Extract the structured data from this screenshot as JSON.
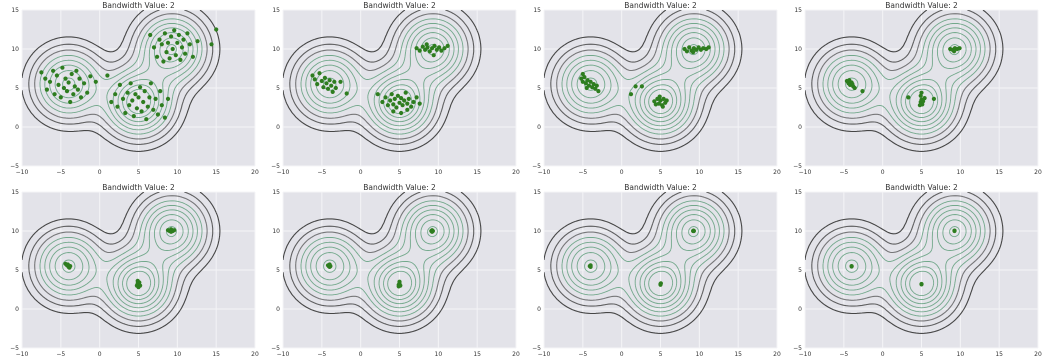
{
  "chart_data": {
    "type": "scatter",
    "colors": {
      "plot_bg": "#e3e3e9",
      "grid": "#f4f4f7",
      "points": "#2e7d1f",
      "contour_outer": "#3c3c3c",
      "contour_inner": "#5e9e7a"
    },
    "centers": [
      [
        -4,
        5.5
      ],
      [
        5,
        3.2
      ],
      [
        9.3,
        10
      ]
    ],
    "panels": [
      {
        "title": "Bandwidth Value: 2",
        "xlim": [
          -10,
          20
        ],
        "ylim": [
          -5,
          15
        ],
        "xticks": [
          -10,
          -5,
          0,
          5,
          10,
          15,
          20
        ],
        "yticks": [
          -5,
          0,
          5,
          10,
          15
        ],
        "points": [
          [
            -7.5,
            7
          ],
          [
            -7,
            6.2
          ],
          [
            -6.8,
            4.8
          ],
          [
            -6.4,
            5.8
          ],
          [
            -6,
            7.2
          ],
          [
            -5.8,
            4.2
          ],
          [
            -5.5,
            6.6
          ],
          [
            -5.3,
            5.4
          ],
          [
            -5,
            3.8
          ],
          [
            -4.8,
            7.6
          ],
          [
            -4.6,
            5
          ],
          [
            -4.4,
            6.2
          ],
          [
            -4.2,
            4.6
          ],
          [
            -4,
            5.7
          ],
          [
            -3.8,
            3.2
          ],
          [
            -3.6,
            6.8
          ],
          [
            -3.4,
            4.2
          ],
          [
            -3.2,
            5.2
          ],
          [
            -3,
            7.2
          ],
          [
            -2.8,
            4.8
          ],
          [
            -2.6,
            6.2
          ],
          [
            -2.4,
            3.8
          ],
          [
            -2,
            5.6
          ],
          [
            -1.6,
            4.4
          ],
          [
            -1.2,
            6.5
          ],
          [
            -0.5,
            5.8
          ],
          [
            1,
            6.6
          ],
          [
            1.5,
            3.2
          ],
          [
            2,
            4.2
          ],
          [
            2.3,
            2.6
          ],
          [
            2.6,
            5.4
          ],
          [
            3,
            3.6
          ],
          [
            3.3,
            1.8
          ],
          [
            3.6,
            4.4
          ],
          [
            3.8,
            2.8
          ],
          [
            4,
            5.6
          ],
          [
            4.2,
            3.4
          ],
          [
            4.4,
            1.4
          ],
          [
            4.6,
            4.2
          ],
          [
            4.8,
            2.4
          ],
          [
            5,
            3.8
          ],
          [
            5.2,
            5.1
          ],
          [
            5.4,
            2
          ],
          [
            5.6,
            3.2
          ],
          [
            5.8,
            4.6
          ],
          [
            6,
            1
          ],
          [
            6.2,
            2.6
          ],
          [
            6.4,
            3.8
          ],
          [
            6.6,
            5.6
          ],
          [
            6.9,
            2.2
          ],
          [
            7.2,
            3.6
          ],
          [
            7.5,
            1.6
          ],
          [
            7.8,
            4.6
          ],
          [
            8,
            2.8
          ],
          [
            8.4,
            1.2
          ],
          [
            8.8,
            3.6
          ],
          [
            6.5,
            11.8
          ],
          [
            7,
            10.2
          ],
          [
            7.4,
            9
          ],
          [
            7.7,
            11.2
          ],
          [
            8,
            10.6
          ],
          [
            8.2,
            8.4
          ],
          [
            8.4,
            12
          ],
          [
            8.6,
            9.6
          ],
          [
            8.8,
            10.8
          ],
          [
            9,
            8.8
          ],
          [
            9.2,
            11.6
          ],
          [
            9.4,
            10
          ],
          [
            9.6,
            12.4
          ],
          [
            9.8,
            9.2
          ],
          [
            10,
            10.8
          ],
          [
            10.2,
            11.8
          ],
          [
            10.4,
            8.6
          ],
          [
            10.6,
            10.2
          ],
          [
            10.8,
            11.2
          ],
          [
            11,
            9.4
          ],
          [
            11.3,
            12
          ],
          [
            11.6,
            10.6
          ],
          [
            12,
            9
          ],
          [
            12.6,
            11
          ],
          [
            14.4,
            10.6
          ],
          [
            15,
            12.5
          ]
        ]
      },
      {
        "title": "Bandwidth Value: 2",
        "xlim": [
          -10,
          20
        ],
        "ylim": [
          -5,
          15
        ],
        "xticks": [
          -10,
          -5,
          0,
          5,
          10,
          15,
          20
        ],
        "yticks": [
          -5,
          0,
          5,
          10,
          15
        ],
        "points": [
          [
            -6.2,
            6.6
          ],
          [
            -5.9,
            6.1
          ],
          [
            -5.6,
            5.5
          ],
          [
            -5.3,
            6.9
          ],
          [
            -5,
            5.9
          ],
          [
            -4.8,
            5.1
          ],
          [
            -4.6,
            6.3
          ],
          [
            -4.4,
            5.6
          ],
          [
            -4.2,
            4.9
          ],
          [
            -4,
            6
          ],
          [
            -3.8,
            5.3
          ],
          [
            -3.6,
            4.5
          ],
          [
            -3.4,
            5.8
          ],
          [
            -3.2,
            5
          ],
          [
            -2.6,
            5.8
          ],
          [
            -1.8,
            4.3
          ],
          [
            2.2,
            4.2
          ],
          [
            2.8,
            3.2
          ],
          [
            3.2,
            3.8
          ],
          [
            3.5,
            2.8
          ],
          [
            3.8,
            3.4
          ],
          [
            4,
            4.2
          ],
          [
            4.2,
            2.9
          ],
          [
            4.4,
            3.6
          ],
          [
            4.6,
            2.5
          ],
          [
            4.8,
            4
          ],
          [
            5,
            3.1
          ],
          [
            5.2,
            3.7
          ],
          [
            5.4,
            2.8
          ],
          [
            5.6,
            3.4
          ],
          [
            5.8,
            4.4
          ],
          [
            6,
            3
          ],
          [
            6.2,
            3.6
          ],
          [
            6.5,
            2.6
          ],
          [
            6.8,
            3.2
          ],
          [
            7.2,
            3.8
          ],
          [
            7.6,
            3
          ],
          [
            4.2,
            2
          ],
          [
            5.2,
            1.8
          ],
          [
            6,
            2.2
          ],
          [
            7.2,
            10.1
          ],
          [
            7.6,
            9.8
          ],
          [
            8,
            10.3
          ],
          [
            8.3,
            9.9
          ],
          [
            8.6,
            10.2
          ],
          [
            8.9,
            9.7
          ],
          [
            9.2,
            10.1
          ],
          [
            9.5,
            10.4
          ],
          [
            9.8,
            9.9
          ],
          [
            10.1,
            10.2
          ],
          [
            10.4,
            9.8
          ],
          [
            10.8,
            10.1
          ],
          [
            11.2,
            10.4
          ],
          [
            9.4,
            9.2
          ],
          [
            8.5,
            10.6
          ]
        ]
      },
      {
        "title": "Bandwidth Value: 2",
        "xlim": [
          -10,
          20
        ],
        "ylim": [
          -5,
          15
        ],
        "xticks": [
          -10,
          -5,
          0,
          5,
          10,
          15,
          20
        ],
        "yticks": [
          -5,
          0,
          5,
          10,
          15
        ],
        "points": [
          [
            -5.2,
            6.2
          ],
          [
            -5,
            5.8
          ],
          [
            -4.8,
            6.4
          ],
          [
            -4.6,
            5.6
          ],
          [
            -4.4,
            6
          ],
          [
            -4.2,
            5.3
          ],
          [
            -4,
            5.8
          ],
          [
            -3.8,
            5.1
          ],
          [
            -3.6,
            5.5
          ],
          [
            -3.4,
            4.9
          ],
          [
            -3.2,
            5.3
          ],
          [
            -4.5,
            5
          ],
          [
            -5,
            6.8
          ],
          [
            -3,
            4.6
          ],
          [
            1.2,
            4.2
          ],
          [
            1.8,
            5.2
          ],
          [
            2.6,
            5.2
          ],
          [
            4.2,
            3.3
          ],
          [
            4.4,
            2.9
          ],
          [
            4.6,
            3.6
          ],
          [
            4.8,
            3
          ],
          [
            5,
            3.4
          ],
          [
            5.2,
            2.8
          ],
          [
            5.4,
            3.6
          ],
          [
            5.6,
            3.1
          ],
          [
            5.8,
            3.4
          ],
          [
            4.9,
            3.9
          ],
          [
            5.3,
            2.6
          ],
          [
            8.1,
            10
          ],
          [
            8.4,
            9.7
          ],
          [
            8.7,
            10.2
          ],
          [
            9,
            9.8
          ],
          [
            9.3,
            10.1
          ],
          [
            9.6,
            9.9
          ],
          [
            9.9,
            10.2
          ],
          [
            10.2,
            9.9
          ],
          [
            10.5,
            10.1
          ],
          [
            10.9,
            10
          ],
          [
            11.2,
            10.2
          ],
          [
            9.2,
            9.6
          ]
        ]
      },
      {
        "title": "Bandwidth Value: 2",
        "xlim": [
          -10,
          20
        ],
        "ylim": [
          -5,
          15
        ],
        "xticks": [
          -10,
          -5,
          0,
          5,
          10,
          15,
          20
        ],
        "yticks": [
          -5,
          0,
          5,
          10,
          15
        ],
        "points": [
          [
            -4.6,
            5.9
          ],
          [
            -4.4,
            5.6
          ],
          [
            -4.2,
            5.4
          ],
          [
            -4,
            5.7
          ],
          [
            -3.8,
            5.2
          ],
          [
            -3.6,
            5
          ],
          [
            -4.3,
            6
          ],
          [
            -3.9,
            5.5
          ],
          [
            -2.6,
            4.6
          ],
          [
            3.3,
            3.8
          ],
          [
            4.8,
            2.8
          ],
          [
            4.9,
            3.2
          ],
          [
            5,
            3.5
          ],
          [
            5.1,
            2.9
          ],
          [
            5.2,
            3.3
          ],
          [
            4.9,
            4
          ],
          [
            5.4,
            3.7
          ],
          [
            5,
            4.4
          ],
          [
            6.6,
            3.6
          ],
          [
            8.7,
            10
          ],
          [
            9,
            9.9
          ],
          [
            9.3,
            10.1
          ],
          [
            9.6,
            10
          ],
          [
            9.9,
            10.1
          ],
          [
            9.2,
            9.7
          ]
        ]
      },
      {
        "title": "Bandwidth Value: 2",
        "xlim": [
          -10,
          20
        ],
        "ylim": [
          -5,
          15
        ],
        "xticks": [
          -10,
          -5,
          0,
          5,
          10,
          15,
          20
        ],
        "yticks": [
          -5,
          0,
          5,
          10,
          15
        ],
        "points": [
          [
            -4.4,
            5.8
          ],
          [
            -4.2,
            5.6
          ],
          [
            -4,
            5.4
          ],
          [
            -3.8,
            5.5
          ],
          [
            -4.1,
            5.7
          ],
          [
            -3.9,
            5.3
          ],
          [
            4.8,
            3
          ],
          [
            4.9,
            3.3
          ],
          [
            5,
            3.1
          ],
          [
            5.1,
            3.4
          ],
          [
            5,
            2.8
          ],
          [
            5.2,
            3
          ],
          [
            4.9,
            3.6
          ],
          [
            8.8,
            10.1
          ],
          [
            9,
            10
          ],
          [
            9.2,
            10.2
          ],
          [
            9.4,
            10
          ],
          [
            9.6,
            10.1
          ],
          [
            9.2,
            9.9
          ]
        ]
      },
      {
        "title": "Bandwidth Value: 2",
        "xlim": [
          -10,
          20
        ],
        "ylim": [
          -5,
          15
        ],
        "xticks": [
          -10,
          -5,
          0,
          5,
          10,
          15,
          20
        ],
        "yticks": [
          -5,
          0,
          5,
          10,
          15
        ],
        "points": [
          [
            -4.2,
            5.6
          ],
          [
            -4.1,
            5.5
          ],
          [
            -4,
            5.4
          ],
          [
            -3.9,
            5.5
          ],
          [
            -4,
            5.7
          ],
          [
            4.9,
            3.1
          ],
          [
            5,
            3.3
          ],
          [
            5.1,
            3
          ],
          [
            5,
            3.5
          ],
          [
            4.9,
            2.9
          ],
          [
            9.1,
            10
          ],
          [
            9.2,
            10.1
          ],
          [
            9.3,
            10
          ],
          [
            9.2,
            9.9
          ]
        ]
      },
      {
        "title": "Bandwidth Value: 2",
        "xlim": [
          -10,
          20
        ],
        "ylim": [
          -5,
          15
        ],
        "xticks": [
          -10,
          -5,
          0,
          5,
          10,
          15,
          20
        ],
        "yticks": [
          -5,
          0,
          5,
          10,
          15
        ],
        "points": [
          [
            -4.1,
            5.5
          ],
          [
            -4,
            5.4
          ],
          [
            -4,
            5.6
          ],
          [
            5,
            3.2
          ],
          [
            5,
            3.1
          ],
          [
            5.05,
            3.3
          ],
          [
            9.2,
            10
          ],
          [
            9.25,
            10.05
          ],
          [
            9.3,
            10
          ]
        ]
      },
      {
        "title": "Bandwidth Value: 2",
        "xlim": [
          -10,
          20
        ],
        "ylim": [
          -5,
          15
        ],
        "xticks": [
          -10,
          -5,
          0,
          5,
          10,
          15,
          20
        ],
        "yticks": [
          -5,
          0,
          5,
          10,
          15
        ],
        "points": [
          [
            -4,
            5.5
          ],
          [
            -4,
            5.45
          ],
          [
            5,
            3.2
          ],
          [
            5,
            3.15
          ],
          [
            9.25,
            10
          ],
          [
            9.25,
            10.05
          ]
        ]
      }
    ]
  }
}
